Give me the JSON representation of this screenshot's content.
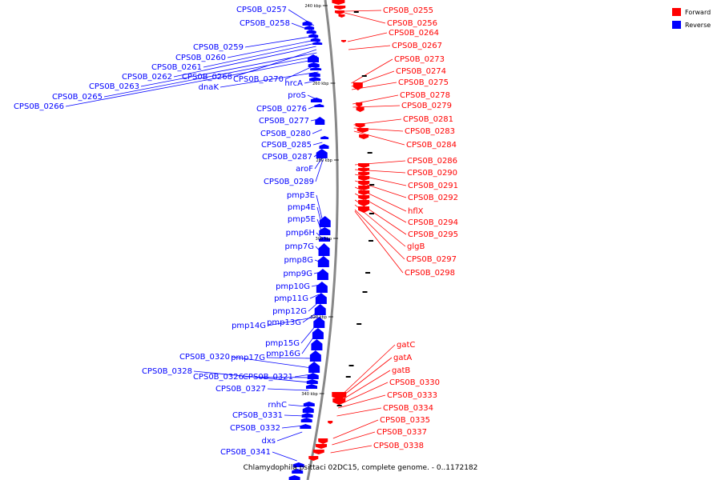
{
  "title": "Chlamydophila psittaci 02DC15, complete genome. - 0..1172182",
  "legend": [
    {
      "label": "Forward",
      "color": "#ff0000"
    },
    {
      "label": "Reverse",
      "color": "#0000ff"
    }
  ],
  "colors": {
    "forward": "#ff0000",
    "reverse": "#0000ff",
    "backbone": "#888888"
  },
  "ticks": [
    "240 kbp",
    "260 kbp",
    "280 kbp",
    "300 kbp",
    "320 kbp",
    "340 kbp"
  ],
  "reverse_labels": [
    "CPS0B_0257",
    "CPS0B_0258",
    "CPS0B_0259",
    "CPS0B_0260",
    "CPS0B_0261",
    "CPS0B_0262",
    "CPS0B_0268",
    "CPS0B_0263",
    "CPS0B_0270",
    "hrcA",
    "CPS0B_0265",
    "dnaK",
    "CPS0B_0266",
    "proS",
    "CPS0B_0276",
    "CPS0B_0277",
    "CPS0B_0280",
    "CPS0B_0285",
    "CPS0B_0287",
    "aroF",
    "CPS0B_0289",
    "pmp3E",
    "pmp4E",
    "pmp5E",
    "pmp6H",
    "pmp7G",
    "pmp8G",
    "pmp9G",
    "pmp10G",
    "pmp11G",
    "pmp12G",
    "pmp13G",
    "pmp14G",
    "pmp15G",
    "pmp16G",
    "CPS0B_0320",
    "pmp17G",
    "CPS0B_0328",
    "CPS0B_0326",
    "CPS0B_0321",
    "CPS0B_0327",
    "rnhC",
    "CPS0B_0331",
    "CPS0B_0332",
    "dxs",
    "CPS0B_0341"
  ],
  "forward_labels": [
    "CPS0B_0255",
    "CPS0B_0256",
    "CPS0B_0264",
    "CPS0B_0267",
    "CPS0B_0273",
    "CPS0B_0274",
    "CPS0B_0275",
    "CPS0B_0278",
    "CPS0B_0279",
    "CPS0B_0281",
    "CPS0B_0283",
    "CPS0B_0284",
    "CPS0B_0286",
    "CPS0B_0290",
    "CPS0B_0291",
    "CPS0B_0292",
    "hflX",
    "CPS0B_0294",
    "CPS0B_0295",
    "glgB",
    "CPS0B_0297",
    "CPS0B_0298",
    "gatC",
    "gatA",
    "gatB",
    "CPS0B_0330",
    "CPS0B_0333",
    "CPS0B_0334",
    "CPS0B_0335",
    "CPS0B_0337",
    "CPS0B_0338"
  ]
}
